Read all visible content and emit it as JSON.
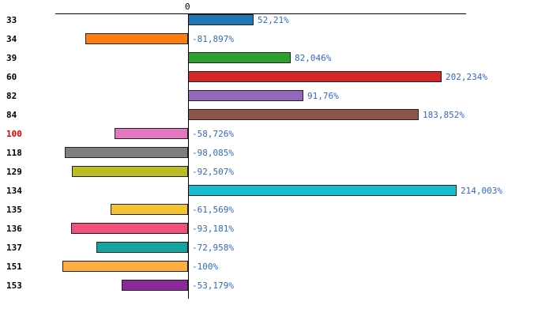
{
  "chart_data": {
    "type": "bar",
    "orientation": "horizontal",
    "title": "",
    "xlabel": "",
    "ylabel": "",
    "grid": false,
    "legend": "none",
    "xlim": [
      -110,
      240
    ],
    "axis": {
      "zero_label": "0"
    },
    "value_label_color": "#3366CC",
    "categories": [
      "33",
      "34",
      "39",
      "60",
      "82",
      "84",
      "100",
      "118",
      "129",
      "134",
      "135",
      "136",
      "137",
      "151",
      "153"
    ],
    "values": [
      52.21,
      -81.897,
      82.046,
      202.234,
      91.76,
      183.852,
      -58.726,
      -98.085,
      -92.507,
      214.003,
      -61.569,
      -93.181,
      -72.958,
      -100,
      -53.179
    ],
    "value_labels": [
      "52,21%",
      "-81,897%",
      "82,046%",
      "202,234%",
      "91,76%",
      "183,852%",
      "-58,726%",
      "-98,085%",
      "-92,507%",
      "214,003%",
      "-61,569%",
      "-93,181%",
      "-72,958%",
      "-100%",
      "-53,179%"
    ],
    "bar_colors": [
      "#1F77B4",
      "#FF7F0E",
      "#2CA02C",
      "#D62728",
      "#9467BD",
      "#8C564B",
      "#E377C2",
      "#7F7F7F",
      "#BCBD22",
      "#17BECF",
      "#F4C430",
      "#F0507A",
      "#14A5A0",
      "#FFAF42",
      "#8B2A9B"
    ],
    "category_label_colors": [
      "#000000",
      "#000000",
      "#000000",
      "#000000",
      "#000000",
      "#000000",
      "#DD0000",
      "#000000",
      "#000000",
      "#000000",
      "#000000",
      "#000000",
      "#000000",
      "#000000",
      "#000000"
    ]
  }
}
